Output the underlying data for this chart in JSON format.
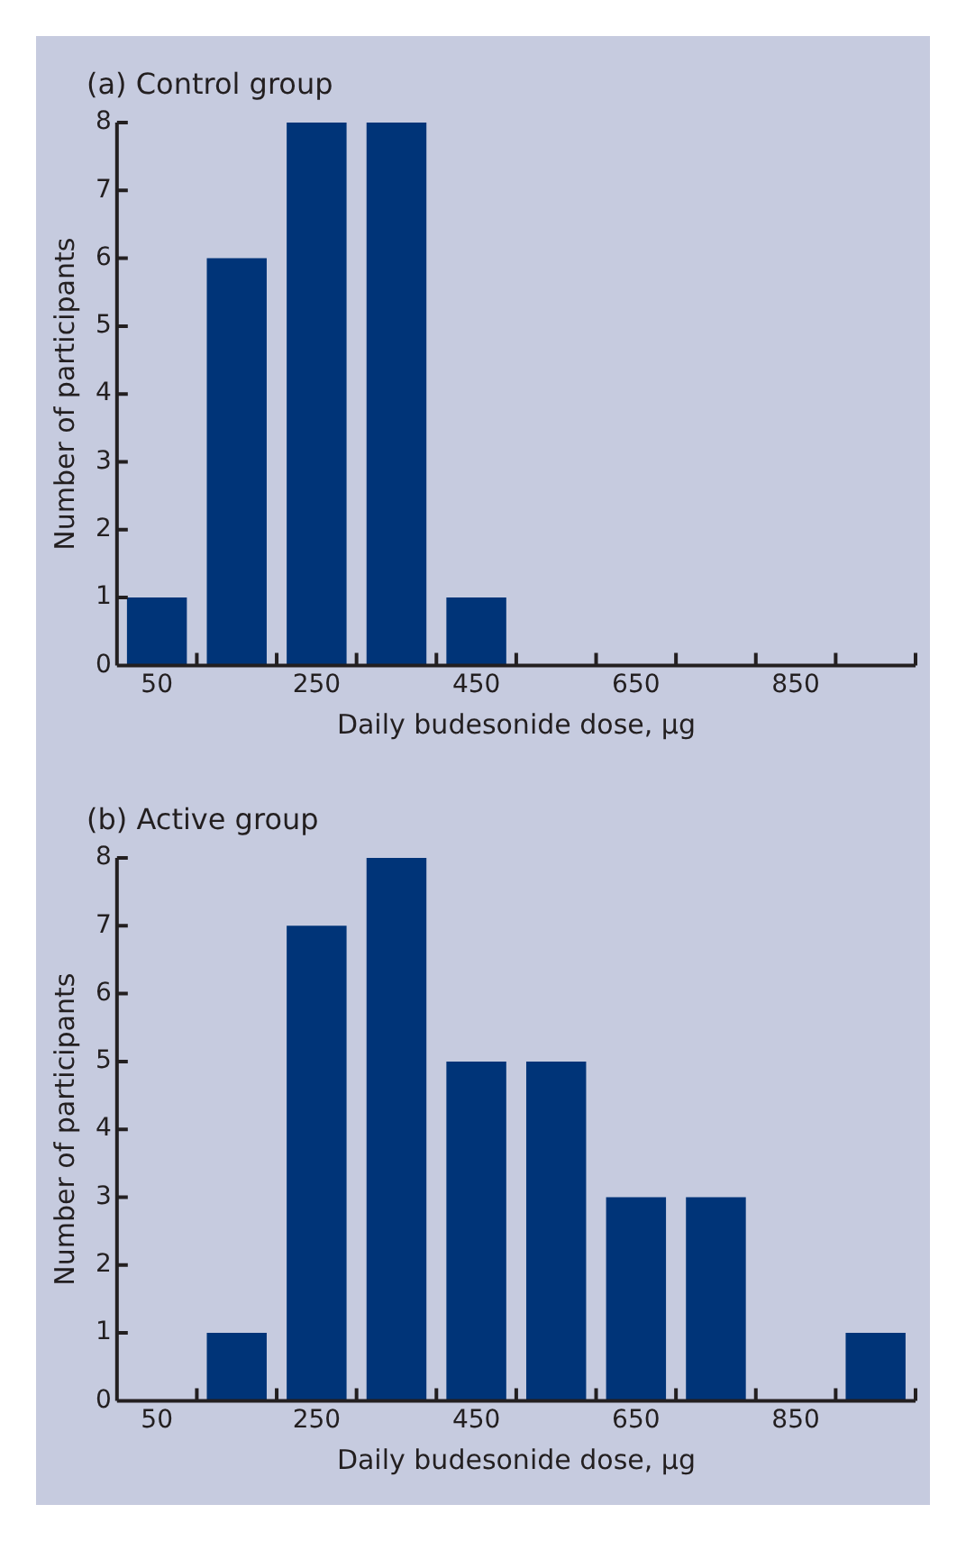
{
  "chart_data": [
    {
      "type": "histogram",
      "title": "(a) Control group",
      "xlabel": "Daily budesonide dose, µg",
      "ylabel": "Number of participants",
      "bins": [
        0,
        100,
        200,
        300,
        400,
        500,
        600,
        700,
        800,
        900,
        1000
      ],
      "values": [
        1,
        6,
        8,
        8,
        1,
        0,
        0,
        0,
        0,
        0
      ],
      "color": "#003478",
      "xlim": [
        0,
        1000
      ],
      "xticks": [
        50,
        {
          "value": 100,
          "label": null
        },
        {
          "value": 200,
          "label": null
        },
        250,
        {
          "value": 300,
          "label": null
        },
        {
          "value": 400,
          "label": null
        },
        450,
        {
          "value": 500,
          "label": null
        },
        {
          "value": 600,
          "label": null
        },
        650,
        {
          "value": 700,
          "label": null
        },
        {
          "value": 800,
          "label": null
        },
        850,
        {
          "value": 900,
          "label": null
        },
        {
          "value": 1000,
          "label": null
        }
      ],
      "ylim": [
        0,
        8
      ],
      "yticks": [
        0,
        1,
        2,
        3,
        4,
        5,
        6,
        7,
        8
      ],
      "grid": false,
      "legend": false
    },
    {
      "type": "histogram",
      "title": "(b) Active group",
      "xlabel": "Daily budesonide dose, µg",
      "ylabel": "Number of participants",
      "bins": [
        0,
        100,
        200,
        300,
        400,
        500,
        600,
        700,
        800,
        900,
        1000
      ],
      "values": [
        0,
        1,
        7,
        8,
        5,
        5,
        3,
        3,
        0,
        1
      ],
      "color": "#003478",
      "xlim": [
        0,
        1000
      ],
      "xticks": [
        50,
        {
          "value": 100,
          "label": null
        },
        {
          "value": 200,
          "label": null
        },
        250,
        {
          "value": 300,
          "label": null
        },
        {
          "value": 400,
          "label": null
        },
        450,
        {
          "value": 500,
          "label": null
        },
        {
          "value": 600,
          "label": null
        },
        650,
        {
          "value": 700,
          "label": null
        },
        {
          "value": 800,
          "label": null
        },
        850,
        {
          "value": 900,
          "label": null
        },
        {
          "value": 1000,
          "label": null
        }
      ],
      "ylim": [
        0,
        8
      ],
      "yticks": [
        0,
        1,
        2,
        3,
        4,
        5,
        6,
        7,
        8
      ],
      "grid": false,
      "legend": false
    }
  ]
}
